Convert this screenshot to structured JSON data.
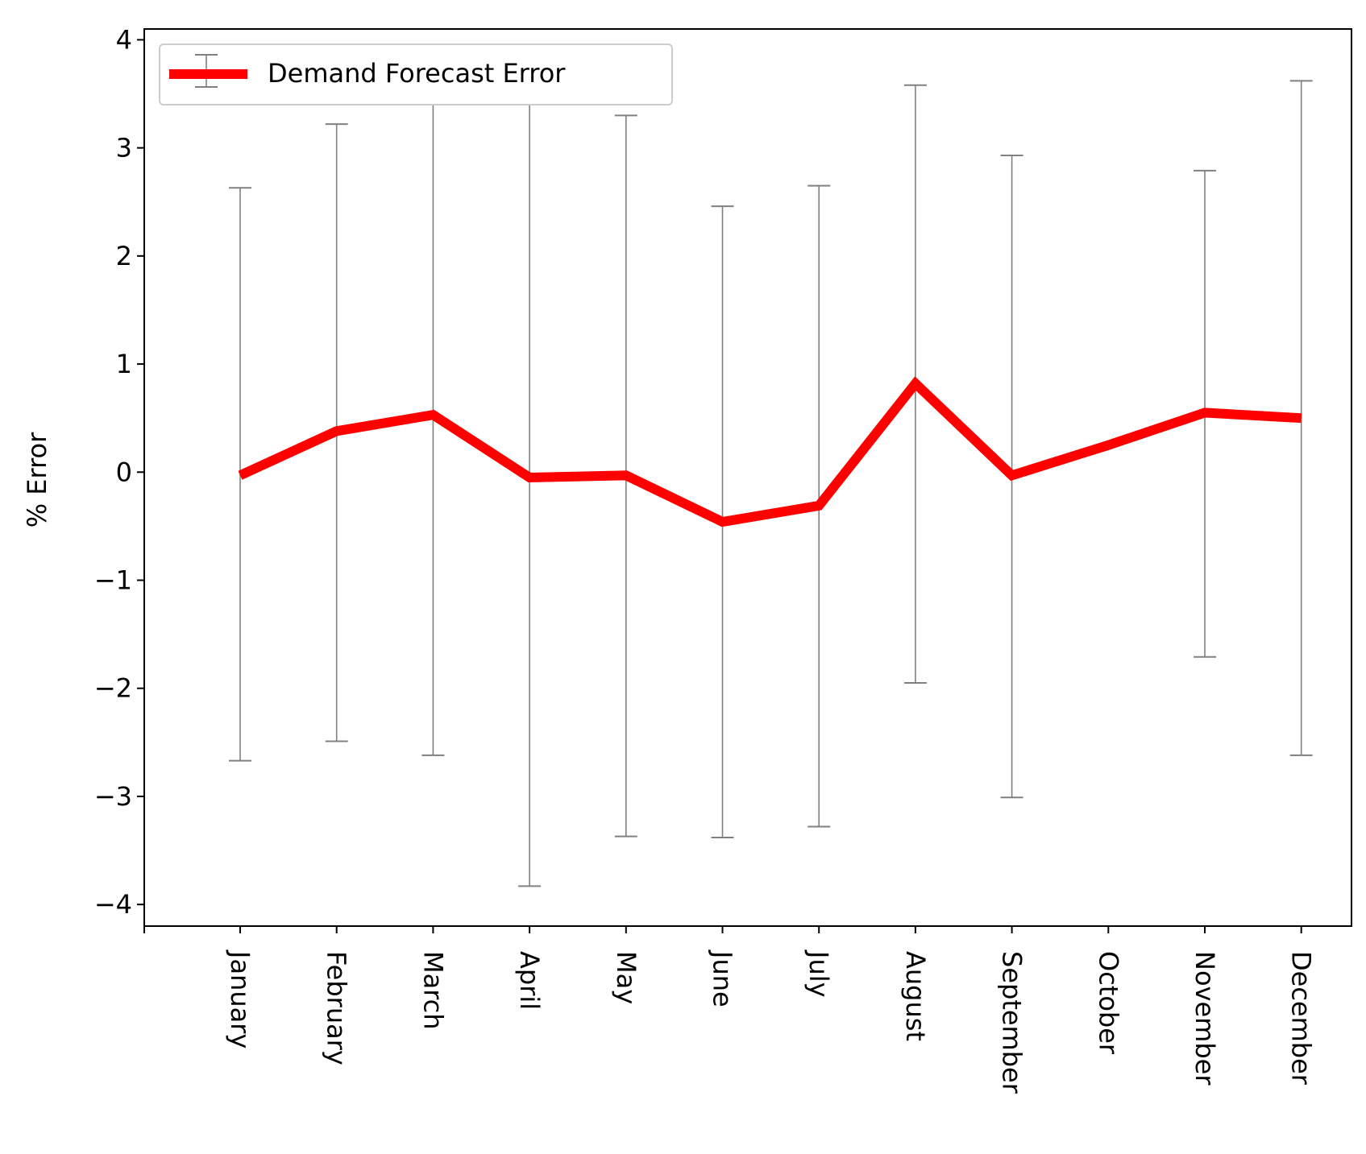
{
  "chart_data": {
    "type": "line",
    "title": "",
    "xlabel": "",
    "ylabel": "% Error",
    "categories": [
      "January",
      "February",
      "March",
      "April",
      "May",
      "June",
      "July",
      "August",
      "September",
      "October",
      "November",
      "December"
    ],
    "series": [
      {
        "name": "Demand Forecast Error",
        "values": [
          -0.03,
          0.38,
          0.53,
          -0.05,
          -0.03,
          -0.46,
          -0.31,
          0.82,
          -0.03,
          0.25,
          0.55,
          0.5
        ],
        "error_lower": [
          -2.67,
          -2.49,
          -2.62,
          -3.83,
          -3.37,
          -3.38,
          -3.28,
          -1.95,
          -3.01,
          null,
          -1.71,
          -2.62
        ],
        "error_upper": [
          2.63,
          3.22,
          3.72,
          3.72,
          3.3,
          2.46,
          2.65,
          3.58,
          2.93,
          null,
          2.79,
          3.62
        ],
        "color": "#ff0000",
        "error_color": "#808080"
      }
    ],
    "ylim": [
      -4.2,
      4.1
    ],
    "yticks": [
      -4,
      -3,
      -2,
      -1,
      0,
      1,
      2,
      3,
      4
    ],
    "ytick_labels": [
      "−4",
      "−3",
      "−2",
      "−1",
      "0",
      "1",
      "2",
      "3",
      "4"
    ],
    "grid": false,
    "legend_position": "upper-left",
    "xtick_rotation": "vertical"
  }
}
